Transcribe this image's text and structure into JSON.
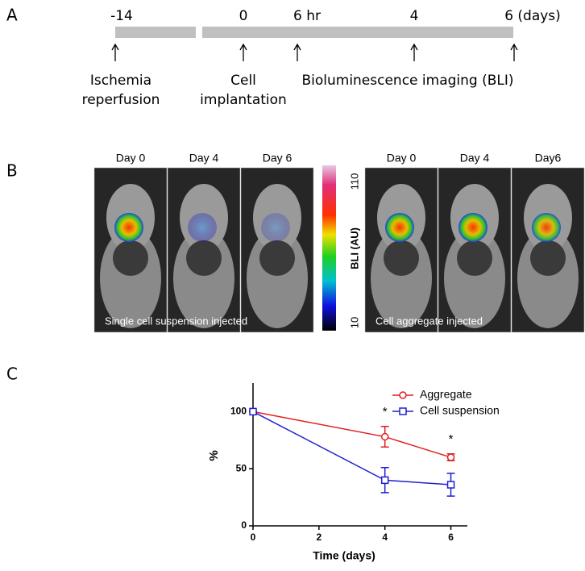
{
  "panels": {
    "a": {
      "letter": "A",
      "top_labels": [
        "-14",
        "0",
        "6 hr",
        "4",
        "6 (days)"
      ],
      "events": [
        [
          "Ischemia",
          "reperfusion"
        ],
        [
          "Cell",
          "implantation"
        ],
        [
          "Bioluminescence imaging (BLI)"
        ]
      ]
    },
    "b": {
      "letter": "B",
      "left": {
        "days": [
          "Day 0",
          "Day 4",
          "Day 6"
        ],
        "caption": "Single cell suspension injected"
      },
      "right": {
        "days": [
          "Day 0",
          "Day 4",
          "Day6"
        ],
        "caption": "Cell aggregate injected"
      },
      "colorbar": {
        "label": "BLI (AU)",
        "max": 110,
        "min": 10
      }
    },
    "c": {
      "letter": "C"
    }
  },
  "chart_data": {
    "type": "line",
    "x_label": "Time (days)",
    "y_label": "%",
    "x": [
      0,
      4,
      6
    ],
    "series": [
      {
        "name": "Aggregate",
        "color": "#e02020",
        "marker": "circle",
        "values": [
          100,
          78,
          60
        ],
        "errors": [
          0,
          9,
          3
        ]
      },
      {
        "name": "Cell suspension",
        "color": "#2020d0",
        "marker": "square",
        "values": [
          100,
          40,
          36
        ],
        "errors": [
          0,
          11,
          10
        ]
      }
    ],
    "annotations": [
      "*",
      "*"
    ],
    "xlim": [
      0,
      6.5
    ],
    "ylim": [
      0,
      125
    ],
    "xticks": [
      0,
      2,
      4,
      6
    ],
    "yticks": [
      0,
      50,
      100
    ]
  }
}
